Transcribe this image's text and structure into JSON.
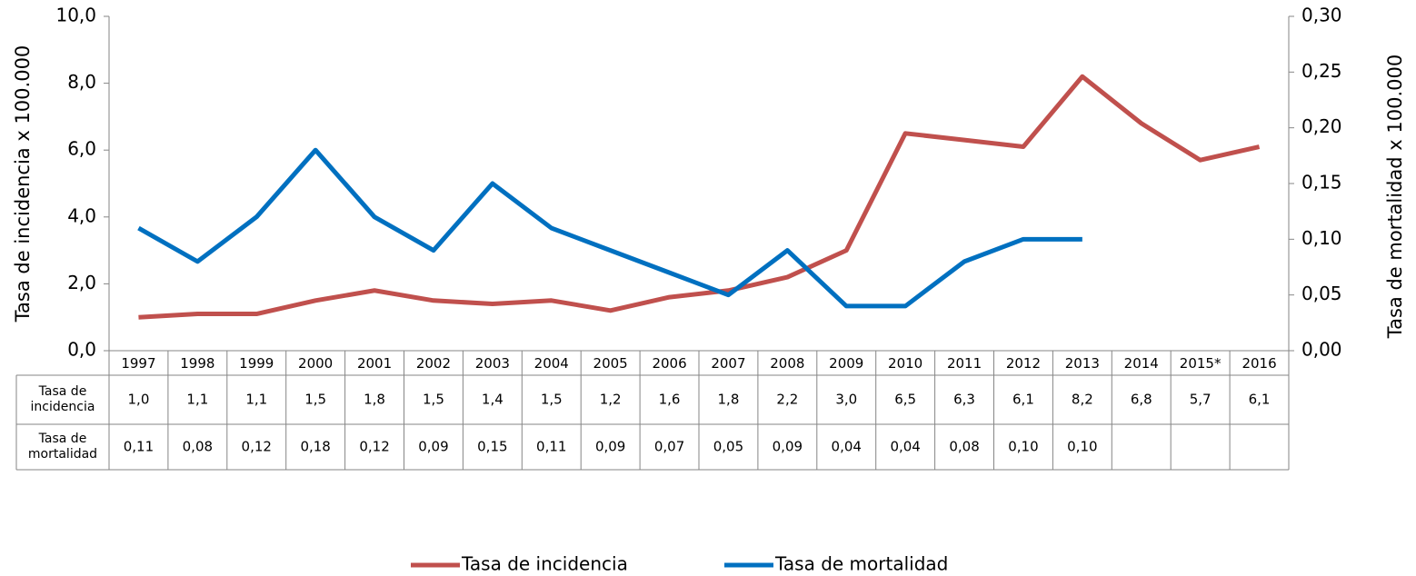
{
  "chart_data": {
    "type": "line",
    "categories": [
      "1997",
      "1998",
      "1999",
      "2000",
      "2001",
      "2002",
      "2003",
      "2004",
      "2005",
      "2006",
      "2007",
      "2008",
      "2009",
      "2010",
      "2011",
      "2012",
      "2013",
      "2014",
      "2015*",
      "2016"
    ],
    "series": [
      {
        "name": "Tasa de incidencia",
        "color": "#c0504d",
        "values": [
          1.0,
          1.1,
          1.1,
          1.5,
          1.8,
          1.5,
          1.4,
          1.5,
          1.2,
          1.6,
          1.8,
          2.2,
          3.0,
          6.5,
          6.3,
          6.1,
          8.2,
          6.8,
          5.7,
          6.1
        ],
        "value_labels": [
          "1,0",
          "1,1",
          "1,1",
          "1,5",
          "1,8",
          "1,5",
          "1,4",
          "1,5",
          "1,2",
          "1,6",
          "1,8",
          "2,2",
          "3,0",
          "6,5",
          "6,3",
          "6,1",
          "8,2",
          "6,8",
          "5,7",
          "6,1"
        ]
      },
      {
        "name": "Tasa de mortalidad",
        "color": "#0070c0",
        "axis": "y2",
        "values": [
          0.11,
          0.08,
          0.12,
          0.18,
          0.12,
          0.09,
          0.15,
          0.11,
          0.09,
          0.07,
          0.05,
          0.09,
          0.04,
          0.04,
          0.08,
          0.1,
          0.1,
          null,
          null,
          null
        ],
        "value_labels": [
          "0,11",
          "0,08",
          "0,12",
          "0,18",
          "0,12",
          "0,09",
          "0,15",
          "0,11",
          "0,09",
          "0,07",
          "0,05",
          "0,09",
          "0,04",
          "0,04",
          "0,08",
          "0,10",
          "0,10",
          null,
          null,
          null
        ]
      }
    ],
    "ylabel": "Tasa de incidencia x 100.000",
    "y2label": "Tasa de mortalidad x 100.000",
    "ylim": [
      0,
      10
    ],
    "yticks": [
      {
        "value": 0,
        "label": "0,0"
      },
      {
        "value": 2,
        "label": "2,0"
      },
      {
        "value": 4,
        "label": "4,0"
      },
      {
        "value": 6,
        "label": "6,0"
      },
      {
        "value": 8,
        "label": "8,0"
      },
      {
        "value": 10,
        "label": "10,0"
      }
    ],
    "y2lim": [
      0,
      0.3
    ],
    "y2ticks": [
      {
        "value": 0,
        "label": "0,00"
      },
      {
        "value": 0.05,
        "label": "0,05"
      },
      {
        "value": 0.1,
        "label": "0,10"
      },
      {
        "value": 0.15,
        "label": "0,15"
      },
      {
        "value": 0.2,
        "label": "0,20"
      },
      {
        "value": 0.25,
        "label": "0,25"
      },
      {
        "value": 0.3,
        "label": "0,30"
      }
    ],
    "legend": "bottom"
  }
}
